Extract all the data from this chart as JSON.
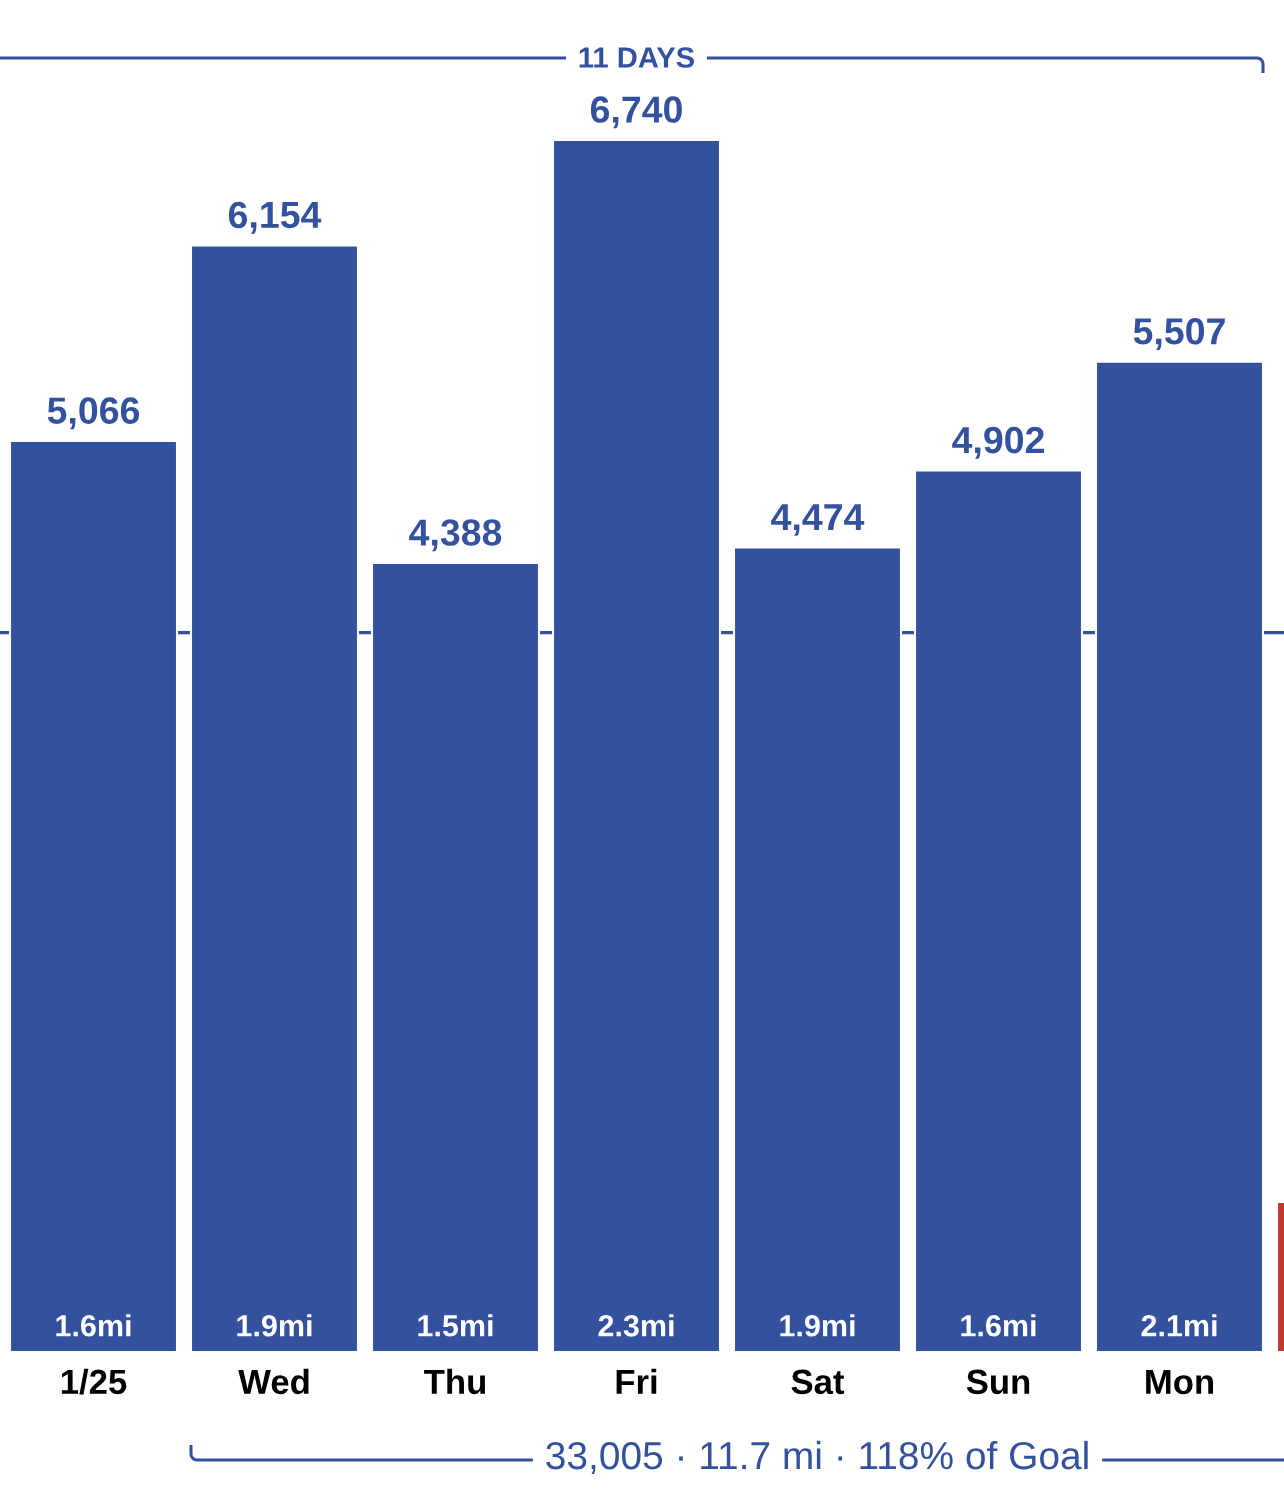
{
  "chart_data": {
    "type": "bar",
    "categories": [
      "1/25",
      "Wed",
      "Thu",
      "Fri",
      "Sat",
      "Sun",
      "Mon",
      null
    ],
    "values": [
      5066,
      6154,
      4388,
      6740,
      4474,
      4902,
      5507,
      834
    ],
    "colors": [
      "#34519d",
      "#34519d",
      "#34519d",
      "#34519d",
      "#34519d",
      "#34519d",
      "#34519d",
      "#c0392f"
    ],
    "value_labels": [
      "5,066",
      "6,154",
      "4,388",
      "6,740",
      "4,474",
      "4,902",
      "5,507",
      null
    ],
    "ref_lines": [
      {
        "axis": "y",
        "value": 4000,
        "color": "#34519d"
      }
    ],
    "tick_labels": "x",
    "annotations": [
      "11 DAYS",
      "33,005 · 11.7 mi · 118% of Goal",
      {
        "text": "1.6mi",
        "x": "1/25",
        "y": 0
      },
      {
        "text": "1.9mi",
        "x": "Wed",
        "y": 0
      },
      {
        "text": "1.5mi",
        "x": "Thu",
        "y": 0
      },
      {
        "text": "2.3mi",
        "x": "Fri",
        "y": 0
      },
      {
        "text": "1.9mi",
        "x": "Sat",
        "y": 0
      },
      {
        "text": "1.6mi",
        "x": "Sun",
        "y": 0
      },
      {
        "text": "2.1mi",
        "x": "Mon",
        "y": 0
      }
    ]
  }
}
